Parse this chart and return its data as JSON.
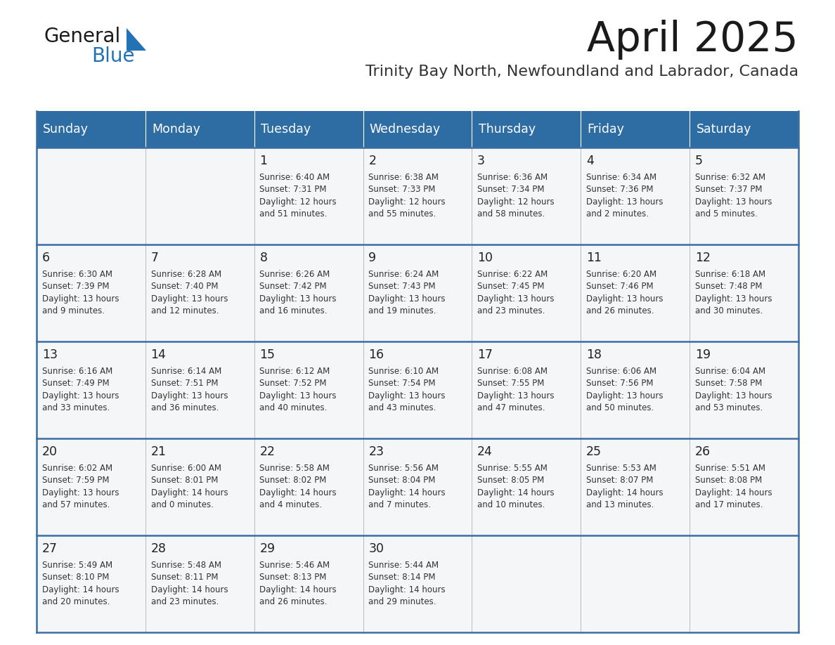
{
  "title": "April 2025",
  "subtitle": "Trinity Bay North, Newfoundland and Labrador, Canada",
  "header_bg": "#2E6DA4",
  "header_text": "#FFFFFF",
  "cell_bg": "#F5F6F7",
  "cell_border": "#CCCCCC",
  "week_divider_color": "#3A6EA5",
  "day_number_color": "#222222",
  "cell_text_color": "#333333",
  "title_color": "#1a1a1a",
  "subtitle_color": "#333333",
  "logo_black": "#1a1a1a",
  "logo_blue": "#2E86C1",
  "days_of_week": [
    "Sunday",
    "Monday",
    "Tuesday",
    "Wednesday",
    "Thursday",
    "Friday",
    "Saturday"
  ],
  "weeks": [
    [
      {
        "day": "",
        "info": ""
      },
      {
        "day": "",
        "info": ""
      },
      {
        "day": "1",
        "info": "Sunrise: 6:40 AM\nSunset: 7:31 PM\nDaylight: 12 hours\nand 51 minutes."
      },
      {
        "day": "2",
        "info": "Sunrise: 6:38 AM\nSunset: 7:33 PM\nDaylight: 12 hours\nand 55 minutes."
      },
      {
        "day": "3",
        "info": "Sunrise: 6:36 AM\nSunset: 7:34 PM\nDaylight: 12 hours\nand 58 minutes."
      },
      {
        "day": "4",
        "info": "Sunrise: 6:34 AM\nSunset: 7:36 PM\nDaylight: 13 hours\nand 2 minutes."
      },
      {
        "day": "5",
        "info": "Sunrise: 6:32 AM\nSunset: 7:37 PM\nDaylight: 13 hours\nand 5 minutes."
      }
    ],
    [
      {
        "day": "6",
        "info": "Sunrise: 6:30 AM\nSunset: 7:39 PM\nDaylight: 13 hours\nand 9 minutes."
      },
      {
        "day": "7",
        "info": "Sunrise: 6:28 AM\nSunset: 7:40 PM\nDaylight: 13 hours\nand 12 minutes."
      },
      {
        "day": "8",
        "info": "Sunrise: 6:26 AM\nSunset: 7:42 PM\nDaylight: 13 hours\nand 16 minutes."
      },
      {
        "day": "9",
        "info": "Sunrise: 6:24 AM\nSunset: 7:43 PM\nDaylight: 13 hours\nand 19 minutes."
      },
      {
        "day": "10",
        "info": "Sunrise: 6:22 AM\nSunset: 7:45 PM\nDaylight: 13 hours\nand 23 minutes."
      },
      {
        "day": "11",
        "info": "Sunrise: 6:20 AM\nSunset: 7:46 PM\nDaylight: 13 hours\nand 26 minutes."
      },
      {
        "day": "12",
        "info": "Sunrise: 6:18 AM\nSunset: 7:48 PM\nDaylight: 13 hours\nand 30 minutes."
      }
    ],
    [
      {
        "day": "13",
        "info": "Sunrise: 6:16 AM\nSunset: 7:49 PM\nDaylight: 13 hours\nand 33 minutes."
      },
      {
        "day": "14",
        "info": "Sunrise: 6:14 AM\nSunset: 7:51 PM\nDaylight: 13 hours\nand 36 minutes."
      },
      {
        "day": "15",
        "info": "Sunrise: 6:12 AM\nSunset: 7:52 PM\nDaylight: 13 hours\nand 40 minutes."
      },
      {
        "day": "16",
        "info": "Sunrise: 6:10 AM\nSunset: 7:54 PM\nDaylight: 13 hours\nand 43 minutes."
      },
      {
        "day": "17",
        "info": "Sunrise: 6:08 AM\nSunset: 7:55 PM\nDaylight: 13 hours\nand 47 minutes."
      },
      {
        "day": "18",
        "info": "Sunrise: 6:06 AM\nSunset: 7:56 PM\nDaylight: 13 hours\nand 50 minutes."
      },
      {
        "day": "19",
        "info": "Sunrise: 6:04 AM\nSunset: 7:58 PM\nDaylight: 13 hours\nand 53 minutes."
      }
    ],
    [
      {
        "day": "20",
        "info": "Sunrise: 6:02 AM\nSunset: 7:59 PM\nDaylight: 13 hours\nand 57 minutes."
      },
      {
        "day": "21",
        "info": "Sunrise: 6:00 AM\nSunset: 8:01 PM\nDaylight: 14 hours\nand 0 minutes."
      },
      {
        "day": "22",
        "info": "Sunrise: 5:58 AM\nSunset: 8:02 PM\nDaylight: 14 hours\nand 4 minutes."
      },
      {
        "day": "23",
        "info": "Sunrise: 5:56 AM\nSunset: 8:04 PM\nDaylight: 14 hours\nand 7 minutes."
      },
      {
        "day": "24",
        "info": "Sunrise: 5:55 AM\nSunset: 8:05 PM\nDaylight: 14 hours\nand 10 minutes."
      },
      {
        "day": "25",
        "info": "Sunrise: 5:53 AM\nSunset: 8:07 PM\nDaylight: 14 hours\nand 13 minutes."
      },
      {
        "day": "26",
        "info": "Sunrise: 5:51 AM\nSunset: 8:08 PM\nDaylight: 14 hours\nand 17 minutes."
      }
    ],
    [
      {
        "day": "27",
        "info": "Sunrise: 5:49 AM\nSunset: 8:10 PM\nDaylight: 14 hours\nand 20 minutes."
      },
      {
        "day": "28",
        "info": "Sunrise: 5:48 AM\nSunset: 8:11 PM\nDaylight: 14 hours\nand 23 minutes."
      },
      {
        "day": "29",
        "info": "Sunrise: 5:46 AM\nSunset: 8:13 PM\nDaylight: 14 hours\nand 26 minutes."
      },
      {
        "day": "30",
        "info": "Sunrise: 5:44 AM\nSunset: 8:14 PM\nDaylight: 14 hours\nand 29 minutes."
      },
      {
        "day": "",
        "info": ""
      },
      {
        "day": "",
        "info": ""
      },
      {
        "day": "",
        "info": ""
      }
    ]
  ]
}
